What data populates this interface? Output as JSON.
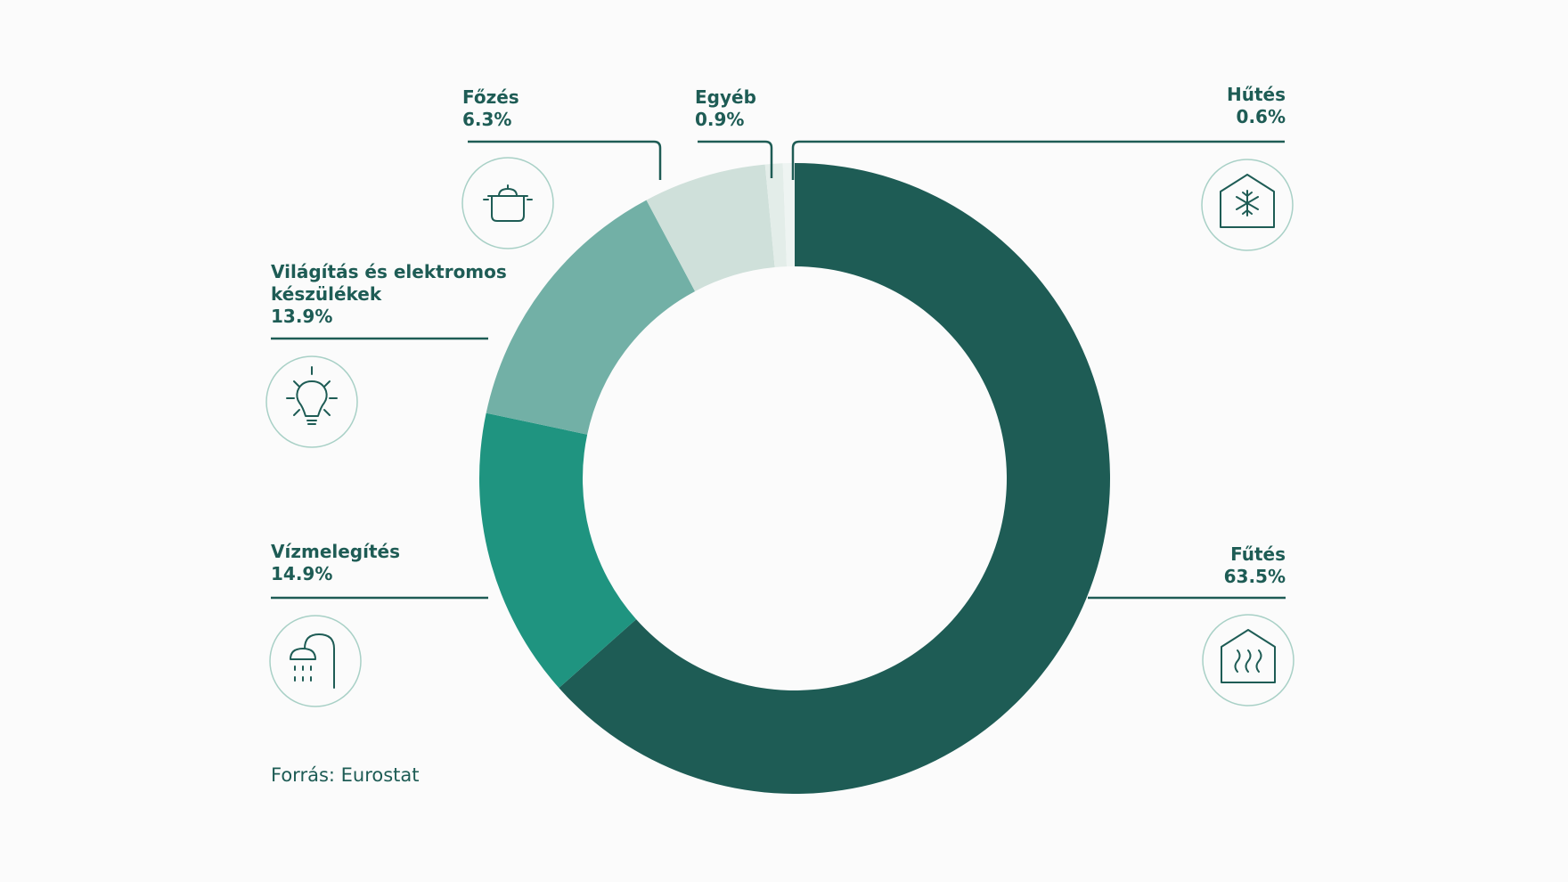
{
  "chart_data": {
    "type": "donut",
    "categories": [
      "Fűtés",
      "Vízmelegítés",
      "Világítás és elektromos készülékek",
      "Főzés",
      "Egyéb",
      "Hűtés"
    ],
    "values": [
      63.5,
      14.9,
      13.9,
      6.3,
      0.9,
      0.6
    ],
    "value_labels": [
      "63.5%",
      "14.9%",
      "13.9%",
      "6.3%",
      "0.9%",
      "0.6%"
    ],
    "colors": [
      "#1e5c55",
      "#1f9480",
      "#72b0a6",
      "#cfe0da",
      "#e3ede9",
      "#eef4f2"
    ],
    "source": "Forrás: Eurostat"
  }
}
